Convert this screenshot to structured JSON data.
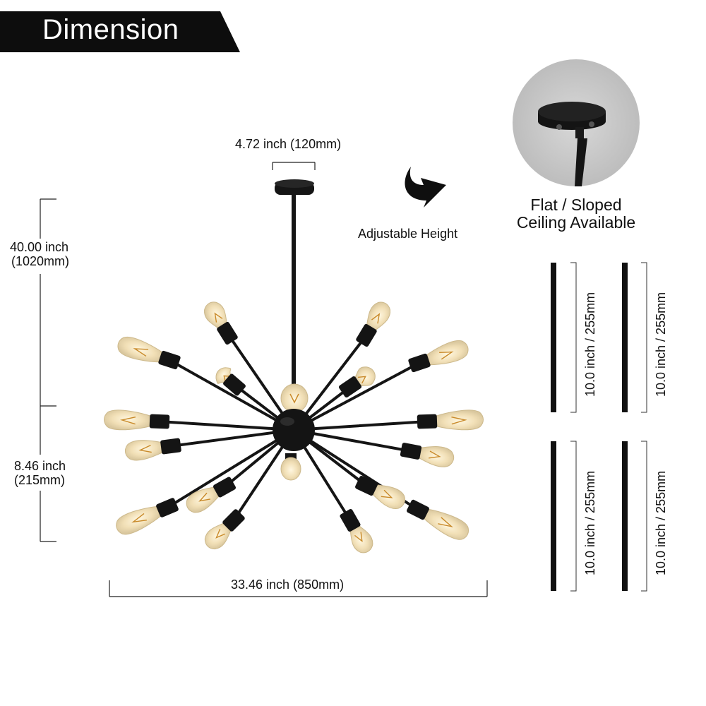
{
  "header": {
    "title": "Dimension"
  },
  "dimensions": {
    "canopy_width": "4.72 inch (120mm)",
    "total_height_line1": "40.00 inch",
    "total_height_line2": "(1020mm)",
    "body_height_line1": "8.46 inch",
    "body_height_line2": "(215mm)",
    "total_width": "33.46 inch (850mm)"
  },
  "adjustable": {
    "label": "Adjustable Height",
    "icon": "curved-arrow-icon"
  },
  "ceiling": {
    "line1": "Flat / Sloped",
    "line2": "Ceiling Available"
  },
  "rods": [
    {
      "label": "10.0 inch / 255mm"
    },
    {
      "label": "10.0 inch / 255mm"
    },
    {
      "label": "10.0 inch / 255mm"
    },
    {
      "label": "10.0 inch / 255mm"
    }
  ],
  "colors": {
    "fixture": "#151515",
    "bulb_glow": "#f3e3bd",
    "filament": "#c98a2a",
    "circle_bg": "#cfcfcf"
  }
}
